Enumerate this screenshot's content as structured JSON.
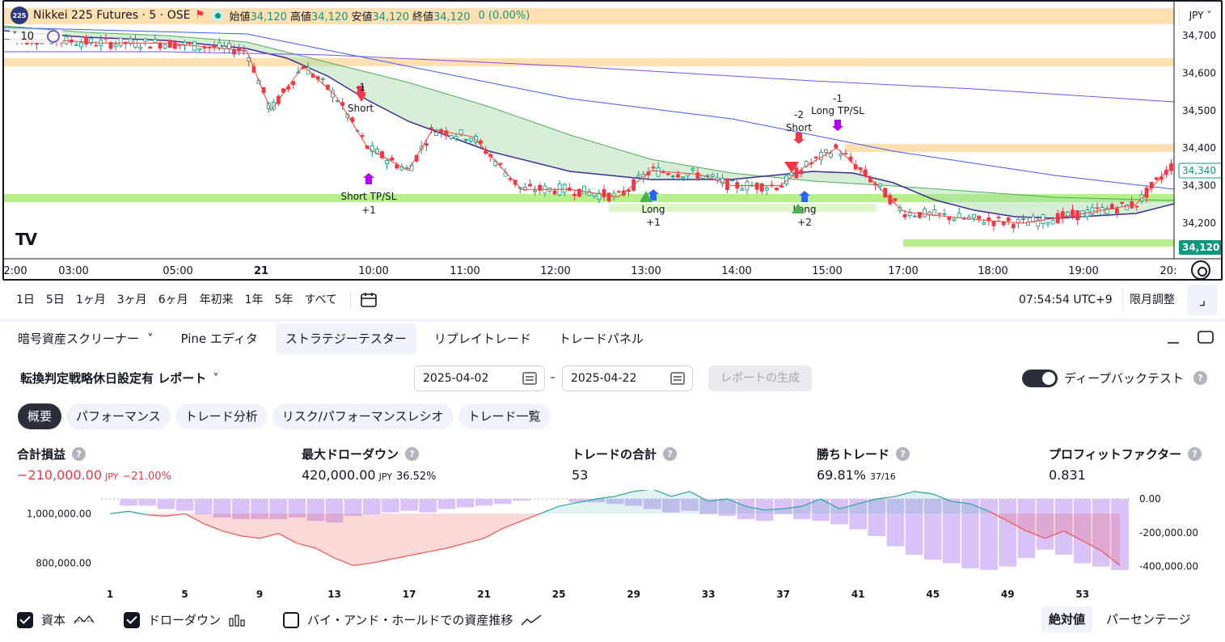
{
  "symbol": {
    "logo_text": "225",
    "title": "Nikkei 225 Futures · 5 · OSE",
    "ohlc": [
      {
        "key": "始値",
        "value": "34,120"
      },
      {
        "key": "高値",
        "value": "34,120"
      },
      {
        "key": "安値",
        "value": "34,120"
      },
      {
        "key": "終値",
        "value": "34,120"
      }
    ],
    "change": "0 (0.00%)",
    "indicator_count": "10",
    "currency": "JPY"
  },
  "price_axis": {
    "ticks": [
      "34,700",
      "34,600",
      "34,500",
      "34,400",
      "34,300",
      "34,200"
    ],
    "tick_values": [
      34700,
      34600,
      34500,
      34400,
      34300,
      34200
    ],
    "current_label": "34,340",
    "last_label": "34,120"
  },
  "time_axis": [
    "2:00",
    "03:00",
    "05:00",
    "21",
    "10:00",
    "11:00",
    "12:00",
    "13:00",
    "14:00",
    "15:00",
    "17:00",
    "18:00",
    "19:00",
    "20:"
  ],
  "annotations": [
    {
      "type": "short",
      "label": "-1",
      "sublabel": "Short"
    },
    {
      "type": "exit",
      "label": "+1",
      "sublabel": "Short TP/SL"
    },
    {
      "type": "long",
      "label": "+1",
      "sublabel": "Long"
    },
    {
      "type": "short",
      "label": "-2",
      "sublabel": "Short"
    },
    {
      "type": "long",
      "label": "+2",
      "sublabel": "Long"
    },
    {
      "type": "exit",
      "label": "-1",
      "sublabel": "Long TP/SL"
    }
  ],
  "colors": {
    "up": "#089981",
    "down": "#f23645",
    "orange_zone": "#ffe0b2",
    "green_zone": "#b7f08a",
    "cloud": "#a5d6a7",
    "accent": "#2962ff"
  },
  "range_buttons": [
    "1日",
    "5日",
    "1ヶ月",
    "3ヶ月",
    "6ヶ月",
    "年初来",
    "1年",
    "5年",
    "すべて"
  ],
  "clock": "07:54:54 UTC+9",
  "contract_adjust": "限月調整",
  "panel_tabs": [
    {
      "label": "暗号資産スクリーナー",
      "has_chevron": true
    },
    {
      "label": "Pine エディタ"
    },
    {
      "label": "ストラテジーテスター",
      "active": true
    },
    {
      "label": "リプレイトレード"
    },
    {
      "label": "トレードパネル"
    }
  ],
  "report": {
    "strategy_name": "転換判定戦略休日設定有 レポート",
    "date_from": "2025-04-02",
    "date_to": "2025-04-22",
    "date_separator": "–",
    "generate_label": "レポートの生成",
    "deep_backtest_label": "ディープバックテスト",
    "deep_backtest_enabled": true
  },
  "sub_tabs": [
    "概要",
    "パフォーマンス",
    "トレード分析",
    "リスク/パフォーマンスレシオ",
    "トレード一覧"
  ],
  "metrics": [
    {
      "label": "合計損益",
      "value": "−210,000.00",
      "unit": "JPY",
      "extra": "−21.00%",
      "negative": true
    },
    {
      "label": "最大ドローダウン",
      "value": "420,000.00",
      "unit": "JPY",
      "extra": "36.52%"
    },
    {
      "label": "トレードの合計",
      "value": "53",
      "unit": "",
      "extra": ""
    },
    {
      "label": "勝ちトレード",
      "value": "69.81%",
      "unit": "",
      "extra": "37/16"
    },
    {
      "label": "プロフィットファクター",
      "value": "0.831",
      "unit": "",
      "extra": ""
    }
  ],
  "chart_data": {
    "type": "area",
    "x_ticks": [
      "1",
      "5",
      "9",
      "13",
      "17",
      "21",
      "25",
      "29",
      "33",
      "37",
      "41",
      "45",
      "49",
      "53"
    ],
    "left_axis_ticks": [
      "1,000,000.00",
      "800,000.00"
    ],
    "right_axis_ticks": [
      "0.00",
      "-200,000.00",
      "-400,000.00"
    ],
    "left_ylim": [
      765000,
      1060000
    ],
    "right_ylim": [
      -430000,
      0
    ],
    "series": [
      {
        "name": "資本",
        "values": [
          1000000,
          1010000,
          995000,
          990000,
          1000000,
          960000,
          930000,
          910000,
          900000,
          920000,
          880000,
          860000,
          820000,
          790000,
          800000,
          815000,
          830000,
          845000,
          860000,
          880000,
          900000,
          940000,
          970000,
          1000000,
          1030000,
          1045000,
          1060000,
          1070000,
          1090000,
          1100000,
          1070000,
          1090000,
          1050000,
          1060000,
          1030000,
          1015000,
          1020000,
          1030000,
          1060000,
          1020000,
          1040000,
          1060000,
          1070000,
          1090000,
          1080000,
          1050000,
          1040000,
          1010000,
          970000,
          930000,
          900000,
          930000,
          890000,
          850000,
          790000
        ]
      },
      {
        "name": "ドローダウン",
        "values": [
          0,
          -40000,
          -40000,
          -60000,
          -70000,
          -90000,
          -110000,
          -120000,
          -120000,
          -120000,
          -110000,
          -130000,
          -140000,
          -100000,
          -90000,
          -80000,
          -70000,
          -80000,
          -60000,
          -50000,
          -40000,
          -30000,
          -10000,
          0,
          0,
          -20000,
          -20000,
          -30000,
          -40000,
          -60000,
          -80000,
          -70000,
          -90000,
          -100000,
          -120000,
          -130000,
          -90000,
          -120000,
          -130000,
          -150000,
          -180000,
          -220000,
          -280000,
          -330000,
          -360000,
          -380000,
          -410000,
          -420000,
          -400000,
          -350000,
          -300000,
          -330000,
          -380000,
          -400000,
          -420000
        ]
      }
    ]
  },
  "legend_items": [
    {
      "label": "資本",
      "checked": true
    },
    {
      "label": "ドローダウン",
      "checked": true
    },
    {
      "label": "バイ・アンド・ホールドでの資産推移",
      "checked": false
    }
  ],
  "view_modes": [
    {
      "label": "絶対値",
      "active": true
    },
    {
      "label": "パーセンテージ",
      "active": false
    }
  ]
}
